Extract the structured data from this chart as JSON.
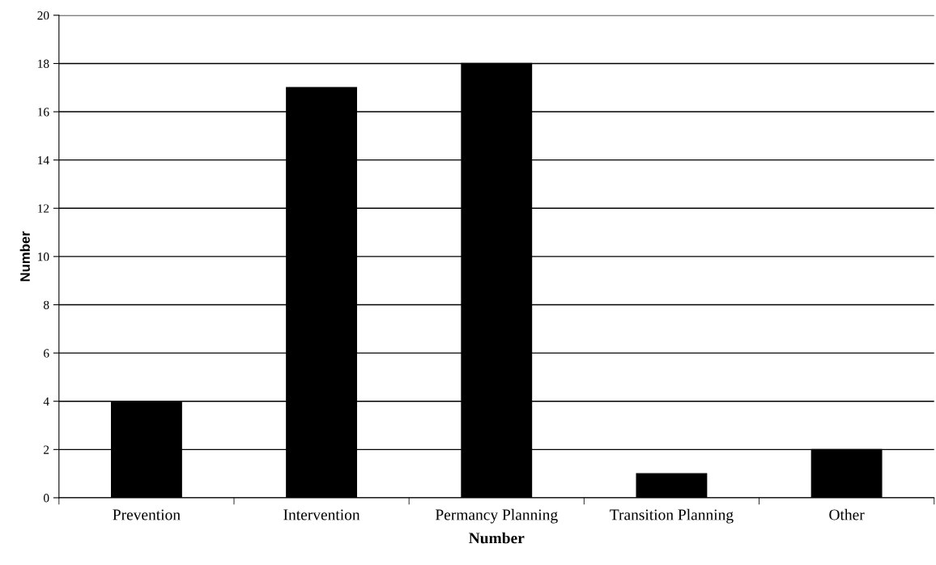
{
  "chart_data": {
    "type": "bar",
    "xlabel": "Number",
    "ylabel": "Number",
    "categories": [
      "Prevention",
      "Intervention",
      "Permancy Planning",
      "Transition Planning",
      "Other"
    ],
    "values": [
      4,
      17,
      18,
      1,
      2
    ],
    "color": "#000000",
    "ylim": [
      0,
      20
    ],
    "yticks": [
      0,
      2,
      4,
      6,
      8,
      10,
      12,
      14,
      16,
      18,
      20
    ],
    "grid": "y"
  }
}
